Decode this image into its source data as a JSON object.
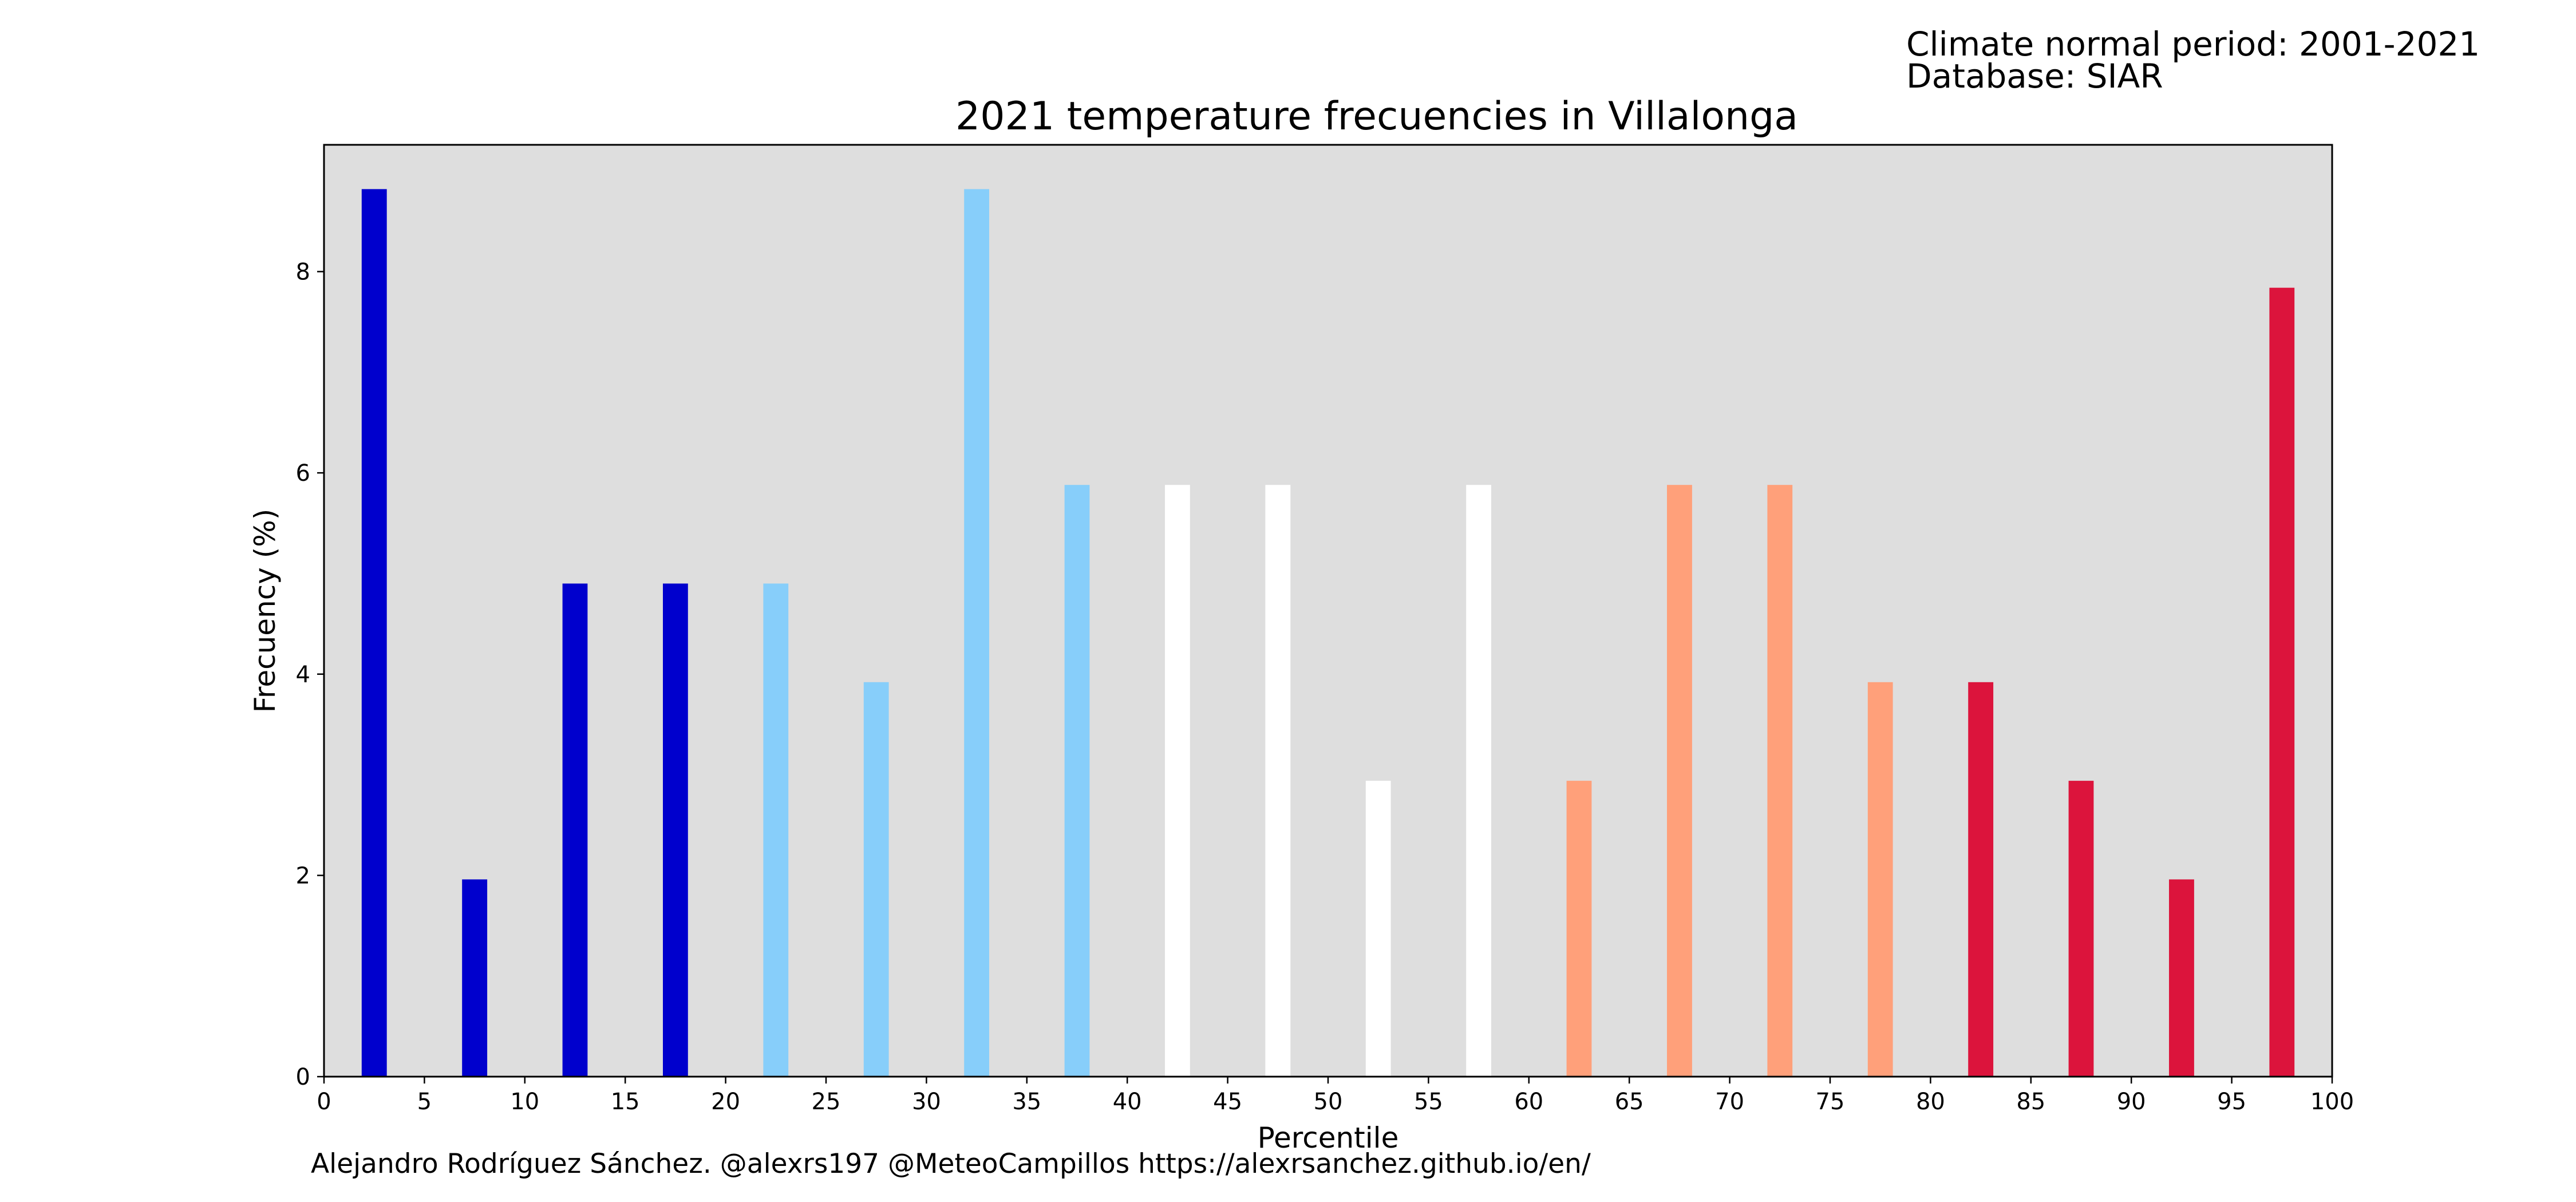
{
  "meta": {
    "period_line": "Climate normal period: 2001-2021",
    "database_line": "Database: SIAR"
  },
  "footer": {
    "credit": "Alejandro Rodríguez Sánchez. @alexrs197 @MeteoCampillos   https://alexrsanchez.github.io/en/"
  },
  "colors": {
    "plot_background": "#dedede",
    "very_cold": "#0000cd",
    "cold": "#87cefa",
    "normal": "#ffffff",
    "warm": "#ffa07a",
    "very_warm": "#dc143c"
  },
  "chart_data": {
    "type": "bar",
    "title": "2021 temperature frecuencies in Villalonga",
    "xlabel": "Percentile",
    "ylabel": "Frecuency (%)",
    "xlim": [
      0,
      100
    ],
    "ylim": [
      0,
      9.26
    ],
    "x_ticks": [
      0,
      5,
      10,
      15,
      20,
      25,
      30,
      35,
      40,
      45,
      50,
      55,
      60,
      65,
      70,
      75,
      80,
      85,
      90,
      95,
      100
    ],
    "y_ticks": [
      0,
      2,
      4,
      6,
      8
    ],
    "bar_width": 1.25,
    "grid": false,
    "legend": "none",
    "bars": [
      {
        "x": 2.5,
        "value": 8.82,
        "color": "#0000cd"
      },
      {
        "x": 7.5,
        "value": 1.96,
        "color": "#0000cd"
      },
      {
        "x": 12.5,
        "value": 4.9,
        "color": "#0000cd"
      },
      {
        "x": 17.5,
        "value": 4.9,
        "color": "#0000cd"
      },
      {
        "x": 22.5,
        "value": 4.9,
        "color": "#87cefa"
      },
      {
        "x": 27.5,
        "value": 3.92,
        "color": "#87cefa"
      },
      {
        "x": 32.5,
        "value": 8.82,
        "color": "#87cefa"
      },
      {
        "x": 37.5,
        "value": 5.88,
        "color": "#87cefa"
      },
      {
        "x": 42.5,
        "value": 5.88,
        "color": "#ffffff"
      },
      {
        "x": 47.5,
        "value": 5.88,
        "color": "#ffffff"
      },
      {
        "x": 52.5,
        "value": 2.94,
        "color": "#ffffff"
      },
      {
        "x": 57.5,
        "value": 5.88,
        "color": "#ffffff"
      },
      {
        "x": 62.5,
        "value": 2.94,
        "color": "#ffa07a"
      },
      {
        "x": 67.5,
        "value": 5.88,
        "color": "#ffa07a"
      },
      {
        "x": 72.5,
        "value": 5.88,
        "color": "#ffa07a"
      },
      {
        "x": 77.5,
        "value": 3.92,
        "color": "#ffa07a"
      },
      {
        "x": 82.5,
        "value": 3.92,
        "color": "#dc143c"
      },
      {
        "x": 87.5,
        "value": 2.94,
        "color": "#dc143c"
      },
      {
        "x": 92.5,
        "value": 1.96,
        "color": "#dc143c"
      },
      {
        "x": 97.5,
        "value": 7.84,
        "color": "#dc143c"
      }
    ]
  }
}
